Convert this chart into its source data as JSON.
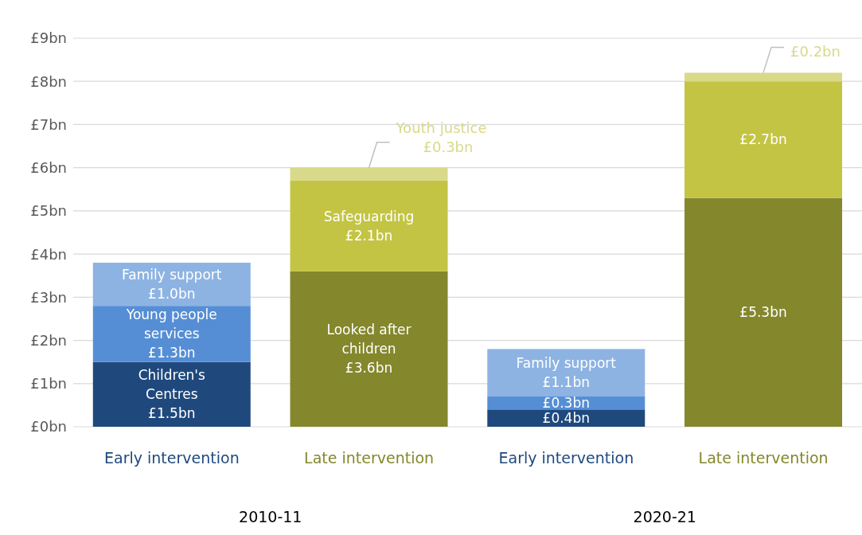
{
  "chart_data": {
    "type": "bar",
    "stacked": true,
    "legend": false,
    "grid": "y",
    "categories": [
      "Early intervention",
      "Late intervention",
      "Early intervention",
      "Late intervention"
    ],
    "ylim": [
      0,
      9
    ],
    "yticks": [
      {
        "value": 0,
        "label": "£0bn"
      },
      {
        "value": 1,
        "label": "£1bn"
      },
      {
        "value": 2,
        "label": "£2bn"
      },
      {
        "value": 3,
        "label": "£3bn"
      },
      {
        "value": 4,
        "label": "£4bn"
      },
      {
        "value": 5,
        "label": "£5bn"
      },
      {
        "value": 6,
        "label": "£6bn"
      },
      {
        "value": 7,
        "label": "£7bn"
      },
      {
        "value": 8,
        "label": "£8bn"
      },
      {
        "value": 9,
        "label": "£9bn"
      }
    ],
    "series": [
      {
        "color": "#1f497d",
        "values": [
          1.5,
          null,
          0.4,
          null
        ],
        "value_labels": [
          "Children's\nCentres\n£1.5bn",
          null,
          "£0.4bn",
          null
        ]
      },
      {
        "color": "#558ed5",
        "values": [
          1.3,
          null,
          0.3,
          null
        ],
        "value_labels": [
          "Young people\nservices\n£1.3bn",
          null,
          "£0.3bn",
          null
        ]
      },
      {
        "color": "#8db3e2",
        "values": [
          1.0,
          null,
          1.1,
          null
        ],
        "value_labels": [
          "Family support\n£1.0bn",
          null,
          "Family support\n£1.1bn",
          null
        ]
      },
      {
        "color": "#84872c",
        "values": [
          null,
          3.6,
          null,
          5.3
        ],
        "value_labels": [
          null,
          "Looked after\nchildren\n£3.6bn",
          null,
          "£5.3bn"
        ]
      },
      {
        "color": "#c3c443",
        "values": [
          null,
          2.1,
          null,
          2.7
        ],
        "value_labels": [
          null,
          "Safeguarding\n£2.1bn",
          null,
          "£2.7bn"
        ]
      },
      {
        "color": "#d9d98a",
        "values": [
          null,
          0.3,
          null,
          0.2
        ],
        "value_labels": [
          null,
          "Youth justice\n£0.3bn",
          null,
          "£0.2bn"
        ]
      }
    ],
    "annotations": [
      "2010-11",
      "2020-21"
    ]
  }
}
